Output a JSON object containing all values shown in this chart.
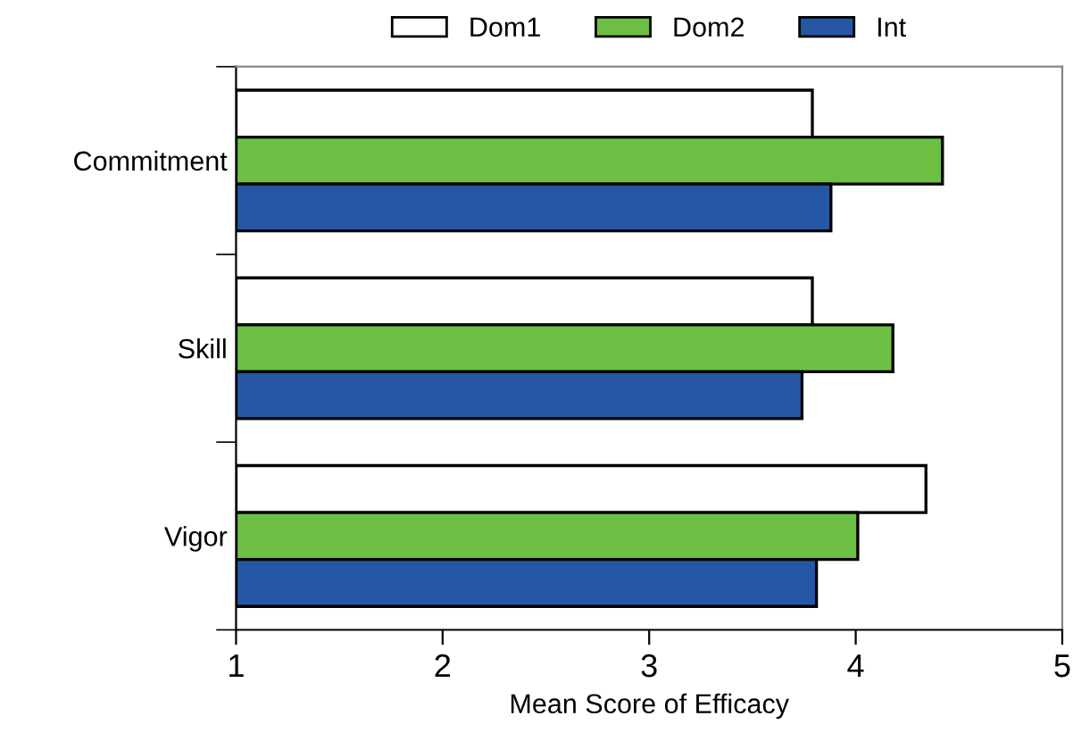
{
  "chart_data": {
    "type": "bar",
    "orientation": "horizontal",
    "xlabel": "Mean Score of Efficacy",
    "categories": [
      "Commitment",
      "Skill",
      "Vigor"
    ],
    "series": [
      {
        "name": "Dom1",
        "color": "#ffffff",
        "values": [
          3.79,
          3.79,
          4.34
        ]
      },
      {
        "name": "Dom2",
        "color": "#6dbf44",
        "values": [
          4.42,
          4.18,
          4.01
        ]
      },
      {
        "name": "Int",
        "color": "#2557a5",
        "values": [
          3.88,
          3.74,
          3.81
        ]
      }
    ],
    "xlim": [
      1,
      5
    ],
    "xticks": [
      1,
      2,
      3,
      4,
      5
    ],
    "grid": false,
    "legend": "top"
  }
}
